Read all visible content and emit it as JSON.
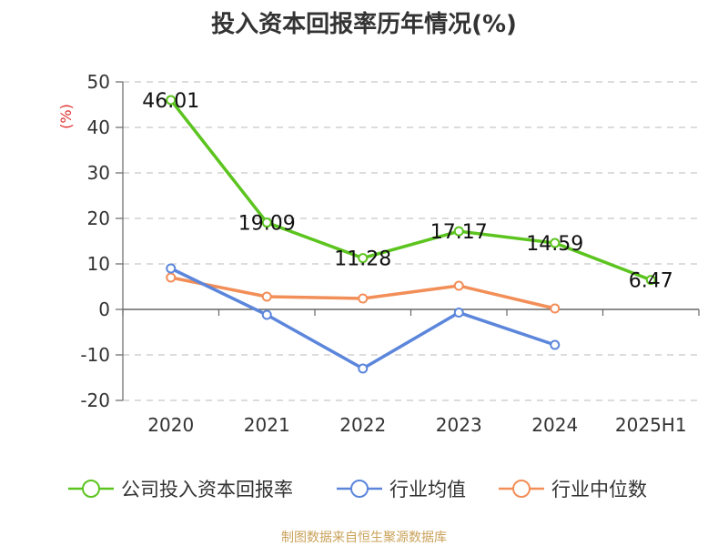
{
  "title": "投入资本回报率历年情况(%)",
  "source": "制图数据来自恒生聚源数据库",
  "colors": {
    "company": "#5cc41f",
    "industry_avg": "#5b86db",
    "industry_median": "#f28e58",
    "axis": "#666666",
    "grid": "#c8c8c8",
    "unit": "#e03030"
  },
  "chart_data": {
    "type": "line",
    "title": "投入资本回报率历年情况(%)",
    "unit": "(%)",
    "ylim": [
      -20,
      50
    ],
    "yticks": [
      -20,
      -10,
      0,
      10,
      20,
      30,
      40,
      50
    ],
    "categories": [
      "2020",
      "2021",
      "2022",
      "2023",
      "2024",
      "2025H1"
    ],
    "grid": true,
    "legend_position": "bottom",
    "series": [
      {
        "name": "公司投入资本回报率",
        "values": [
          46.01,
          19.09,
          11.28,
          17.17,
          14.59,
          6.47
        ],
        "labels": [
          "46.01",
          "19.09",
          "11.28",
          "17.17",
          "14.59",
          "6.47"
        ]
      },
      {
        "name": "行业均值",
        "values": [
          9.0,
          -1.2,
          -13.0,
          -0.7,
          -7.8,
          null
        ]
      },
      {
        "name": "行业中位数",
        "values": [
          7.0,
          2.8,
          2.4,
          5.2,
          0.2,
          null
        ]
      }
    ]
  }
}
